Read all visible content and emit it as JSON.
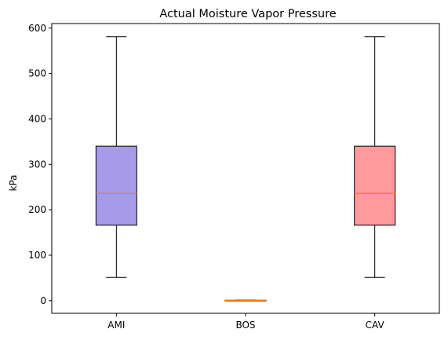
{
  "chart_data": {
    "type": "box",
    "title": "Actual Moisture Vapor Pressure",
    "xlabel": "",
    "ylabel": "kPa",
    "ylim": [
      -28,
      610
    ],
    "yticks": [
      0,
      100,
      200,
      300,
      400,
      500,
      600
    ],
    "grid": false,
    "categories": [
      "AMI",
      "BOS",
      "CAV"
    ],
    "boxes": [
      {
        "category": "AMI",
        "whisker_low": 51,
        "q1": 166,
        "median": 236,
        "q3": 340,
        "whisker_high": 581,
        "fill": "#a79ae9"
      },
      {
        "category": "BOS",
        "whisker_low": 0.2,
        "q1": 0.4,
        "median": 0.6,
        "q3": 0.8,
        "whisker_high": 1.1,
        "fill": "#a79ae9"
      },
      {
        "category": "CAV",
        "whisker_low": 51,
        "q1": 166,
        "median": 236,
        "q3": 340,
        "whisker_high": 581,
        "fill": "#ff9a9e"
      }
    ],
    "colors": {
      "median": "#ff7f0e",
      "edge": "#000000"
    }
  }
}
